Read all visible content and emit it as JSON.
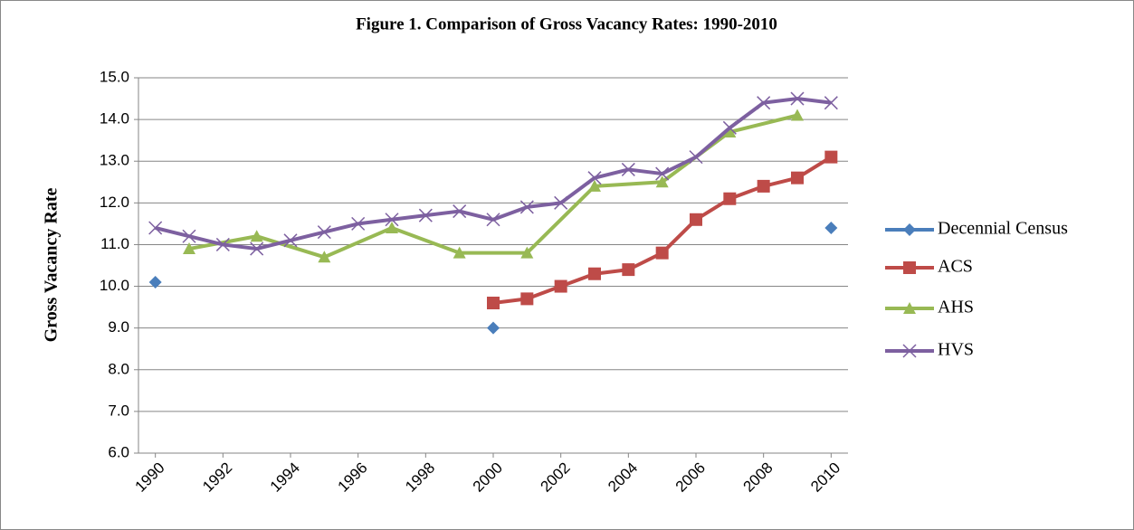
{
  "chart_data": {
    "type": "line",
    "title": "Figure 1. Comparison of Gross Vacancy Rates: 1990-2010",
    "ylabel": "Gross Vacancy Rate",
    "xlim": [
      1989.5,
      2010.5
    ],
    "xticks": [
      1990,
      1992,
      1994,
      1996,
      1998,
      2000,
      2002,
      2004,
      2006,
      2008,
      2010
    ],
    "ylim": [
      6,
      15
    ],
    "yticks": [
      {
        "value": 6,
        "label": "6.0"
      },
      {
        "value": 7,
        "label": "7.0"
      },
      {
        "value": 8,
        "label": "8.0"
      },
      {
        "value": 9,
        "label": "9.0"
      },
      {
        "value": 10,
        "label": "10.0"
      },
      {
        "value": 11,
        "label": "11.0"
      },
      {
        "value": 12,
        "label": "12.0"
      },
      {
        "value": 13,
        "label": "13.0"
      },
      {
        "value": 14,
        "label": "14.0"
      },
      {
        "value": 15,
        "label": "15.0"
      }
    ],
    "grid": true,
    "legend": "right",
    "series": [
      {
        "name": "Decennial Census",
        "color": "#4a7ebb",
        "marker": "diamond",
        "show_line": false,
        "x": [
          1990,
          2000,
          2010
        ],
        "values": [
          10.1,
          9.0,
          11.4
        ]
      },
      {
        "name": "ACS",
        "color": "#be4b48",
        "marker": "square",
        "show_line": true,
        "x": [
          2000,
          2001,
          2002,
          2003,
          2004,
          2005,
          2006,
          2007,
          2008,
          2009,
          2010
        ],
        "values": [
          9.6,
          9.7,
          10.0,
          10.3,
          10.4,
          10.8,
          11.6,
          12.1,
          12.4,
          12.6,
          13.1
        ]
      },
      {
        "name": "AHS",
        "color": "#98b954",
        "marker": "triangle",
        "show_line": true,
        "x": [
          1991,
          1993,
          1995,
          1997,
          1999,
          2001,
          2003,
          2005,
          2007,
          2009
        ],
        "values": [
          10.9,
          11.2,
          10.7,
          11.4,
          10.8,
          10.8,
          12.4,
          12.5,
          13.7,
          14.1
        ]
      },
      {
        "name": "HVS",
        "color": "#7d60a0",
        "marker": "x",
        "show_line": true,
        "x": [
          1990,
          1991,
          1992,
          1993,
          1994,
          1995,
          1996,
          1997,
          1998,
          1999,
          2000,
          2001,
          2002,
          2003,
          2004,
          2005,
          2006,
          2007,
          2008,
          2009,
          2010
        ],
        "values": [
          11.4,
          11.2,
          11.0,
          10.9,
          11.1,
          11.3,
          11.5,
          11.6,
          11.7,
          11.8,
          11.6,
          11.9,
          12.0,
          12.6,
          12.8,
          12.7,
          13.1,
          13.8,
          14.4,
          14.5,
          14.4
        ]
      }
    ]
  }
}
